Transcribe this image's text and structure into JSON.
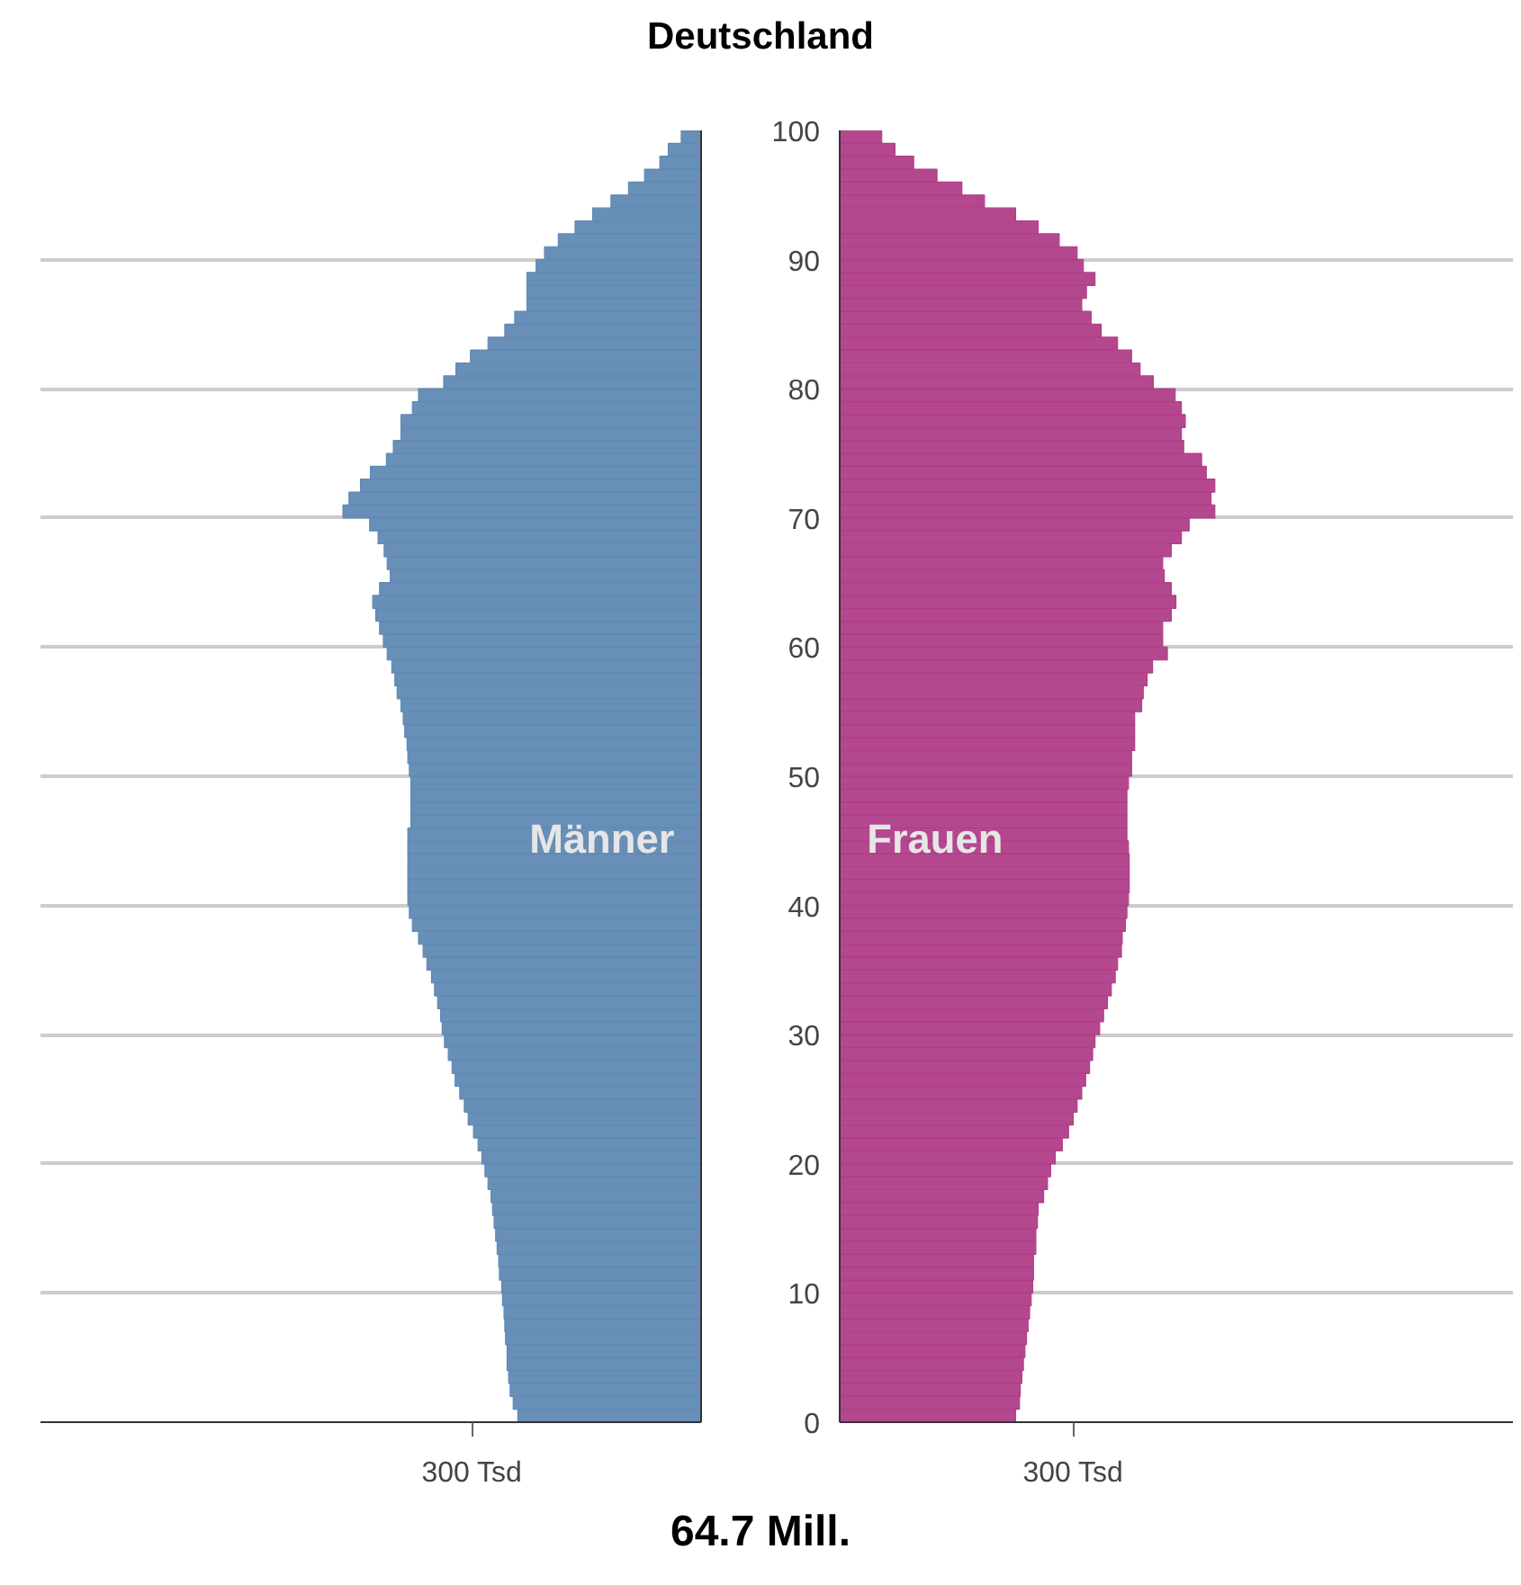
{
  "chart_data": [
    {
      "type": "bar",
      "orientation": "horizontal",
      "title": "Deutschland",
      "annotations": [
        "64.7 Mill."
      ],
      "x": [
        0.5,
        1.5,
        2.5,
        3.5,
        4.5,
        5.5,
        6.5,
        7.5,
        8.5,
        9.5,
        10.5,
        11.5,
        12.5,
        13.5,
        14.5,
        15.5,
        16.5,
        17.5,
        18.5,
        19.5,
        20.5,
        21.5,
        22.5,
        23.5,
        24.5,
        25.5,
        26.5,
        27.5,
        28.5,
        29.5,
        30.5,
        31.5,
        32.5,
        33.5,
        34.5,
        35.5,
        36.5,
        37.5,
        38.5,
        39.5,
        40.5,
        41.5,
        42.5,
        43.5,
        44.5,
        45.5,
        46.5,
        47.5,
        48.5,
        49.5,
        50.5,
        51.5,
        52.5,
        53.5,
        54.5,
        55.5,
        56.5,
        57.5,
        58.5,
        59.5,
        60.5,
        61.5,
        62.5,
        63.5,
        64.5,
        65.5,
        66.5,
        67.5,
        68.5,
        69.5,
        70.5,
        71.5,
        72.5,
        73.5,
        74.5,
        75.5,
        76.5,
        77.5,
        78.5,
        79.5,
        80.5,
        81.5,
        82.5,
        83.5,
        84.5,
        85.5,
        86.5,
        87.5,
        88.5,
        89.5,
        90.5,
        91.5,
        92.5,
        93.5,
        94.5,
        95.5,
        96.5,
        97.5,
        98.5,
        99.5
      ],
      "series": [
        {
          "name": "Männer",
          "color": "#6089b3",
          "values": [
            240,
            246,
            250,
            252,
            254,
            254,
            256,
            257,
            258,
            260,
            261,
            264,
            265,
            267,
            269,
            271,
            273,
            275,
            279,
            283,
            287,
            292,
            298,
            305,
            310,
            316,
            322,
            326,
            331,
            336,
            339,
            341,
            345,
            349,
            353,
            359,
            364,
            370,
            378,
            382,
            384,
            384,
            384,
            384,
            384,
            384,
            380,
            380,
            380,
            380,
            382,
            384,
            385,
            388,
            390,
            393,
            398,
            401,
            405,
            411,
            416,
            421,
            426,
            430,
            421,
            407,
            411,
            415,
            423,
            434,
            469,
            461,
            446,
            433,
            412,
            403,
            393,
            393,
            378,
            370,
            337,
            321,
            302,
            279,
            257,
            244,
            228,
            228,
            228,
            216,
            205,
            187,
            165,
            142,
            118,
            95,
            74,
            54,
            43,
            26
          ]
        }
      ],
      "xlim": [
        865,
        0
      ],
      "xticks": [
        {
          "value": 300,
          "label": "300 Tsd"
        }
      ],
      "ylim": [
        0,
        100
      ],
      "yticks": [
        0,
        10,
        20,
        30,
        40,
        50,
        60,
        70,
        80,
        90,
        100
      ],
      "grid": "y",
      "tick_labels": "x"
    },
    {
      "type": "bar",
      "orientation": "horizontal",
      "x": [
        0.5,
        1.5,
        2.5,
        3.5,
        4.5,
        5.5,
        6.5,
        7.5,
        8.5,
        9.5,
        10.5,
        11.5,
        12.5,
        13.5,
        14.5,
        15.5,
        16.5,
        17.5,
        18.5,
        19.5,
        20.5,
        21.5,
        22.5,
        23.5,
        24.5,
        25.5,
        26.5,
        27.5,
        28.5,
        29.5,
        30.5,
        31.5,
        32.5,
        33.5,
        34.5,
        35.5,
        36.5,
        37.5,
        38.5,
        39.5,
        40.5,
        41.5,
        42.5,
        43.5,
        44.5,
        45.5,
        46.5,
        47.5,
        48.5,
        49.5,
        50.5,
        51.5,
        52.5,
        53.5,
        54.5,
        55.5,
        56.5,
        57.5,
        58.5,
        59.5,
        60.5,
        61.5,
        62.5,
        63.5,
        64.5,
        65.5,
        66.5,
        67.5,
        68.5,
        69.5,
        70.5,
        71.5,
        72.5,
        73.5,
        74.5,
        75.5,
        76.5,
        77.5,
        78.5,
        79.5,
        80.5,
        81.5,
        82.5,
        83.5,
        84.5,
        85.5,
        86.5,
        87.5,
        88.5,
        89.5,
        90.5,
        91.5,
        92.5,
        93.5,
        94.5,
        95.5,
        96.5,
        97.5,
        98.5,
        99.5
      ],
      "series": [
        {
          "name": "Frauen",
          "color": "#b03e88",
          "values": [
            226,
            231,
            232,
            234,
            236,
            238,
            240,
            242,
            244,
            246,
            248,
            249,
            249,
            252,
            252,
            254,
            255,
            262,
            267,
            271,
            277,
            286,
            294,
            300,
            305,
            311,
            316,
            321,
            325,
            328,
            334,
            339,
            344,
            349,
            354,
            357,
            362,
            363,
            367,
            369,
            371,
            372,
            372,
            372,
            371,
            369,
            369,
            369,
            369,
            371,
            375,
            375,
            379,
            379,
            379,
            388,
            390,
            395,
            402,
            421,
            415,
            415,
            426,
            432,
            426,
            417,
            415,
            426,
            439,
            449,
            482,
            477,
            482,
            471,
            465,
            442,
            439,
            444,
            439,
            431,
            403,
            386,
            375,
            357,
            336,
            323,
            311,
            317,
            328,
            313,
            305,
            282,
            255,
            226,
            186,
            157,
            125,
            95,
            71,
            54
          ]
        }
      ],
      "xlim": [
        0,
        865
      ],
      "xticks": [
        {
          "value": 300,
          "label": "300 Tsd"
        }
      ],
      "ylim": [
        0,
        100
      ],
      "yticks": [
        0,
        10,
        20,
        30,
        40,
        50,
        60,
        70,
        80,
        90,
        100
      ],
      "grid": "y"
    }
  ]
}
